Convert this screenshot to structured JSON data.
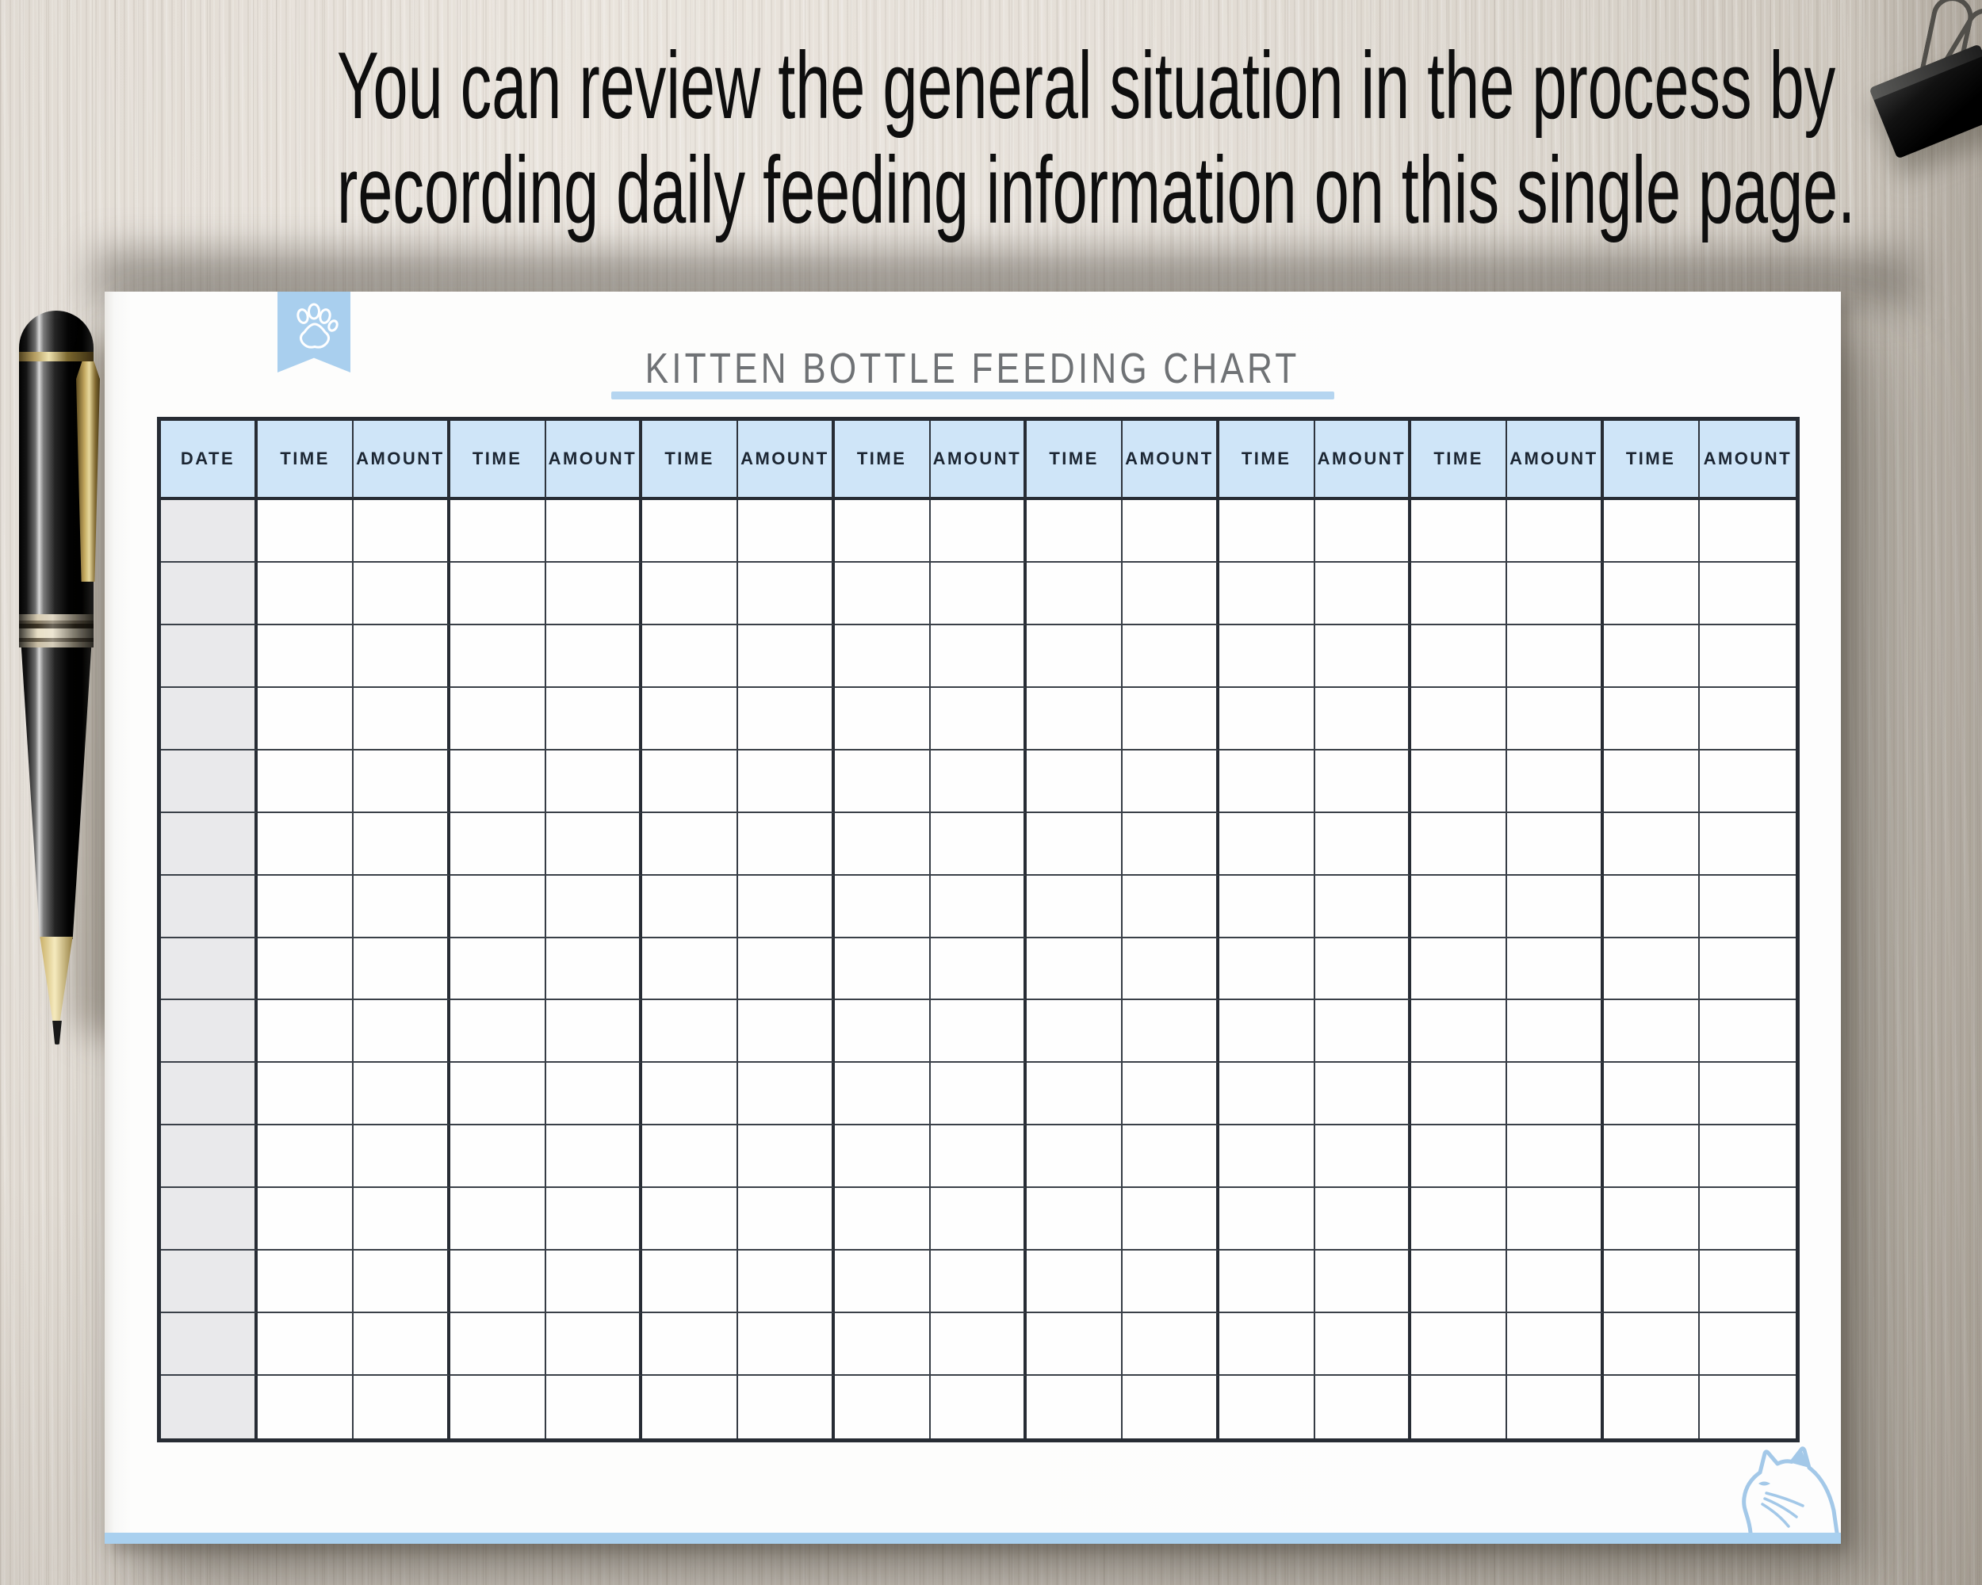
{
  "heading": {
    "line1": "You can review the general situation in the process by",
    "line2": "recording daily feeding information on this single page."
  },
  "page": {
    "title": "KITTEN BOTTLE FEEDING CHART",
    "table": {
      "headers": [
        "DATE",
        "TIME",
        "AMOUNT",
        "TIME",
        "AMOUNT",
        "TIME",
        "AMOUNT",
        "TIME",
        "AMOUNT",
        "TIME",
        "AMOUNT",
        "TIME",
        "AMOUNT",
        "TIME",
        "AMOUNT",
        "TIME",
        "AMOUNT"
      ],
      "data_rows": 15,
      "cells_empty": true
    },
    "icons": {
      "bookmark": "paw-icon",
      "footer": "cat-icon"
    }
  },
  "colors": {
    "header_fill": "#cfe5f8",
    "accent_blue": "#a9cfee",
    "underline_blue": "#b5d5f0",
    "date_column_fill": "#e9e9eb",
    "table_border": "#272c34",
    "title_gray": "#6f7275",
    "caption_black": "#0e0e0e"
  }
}
